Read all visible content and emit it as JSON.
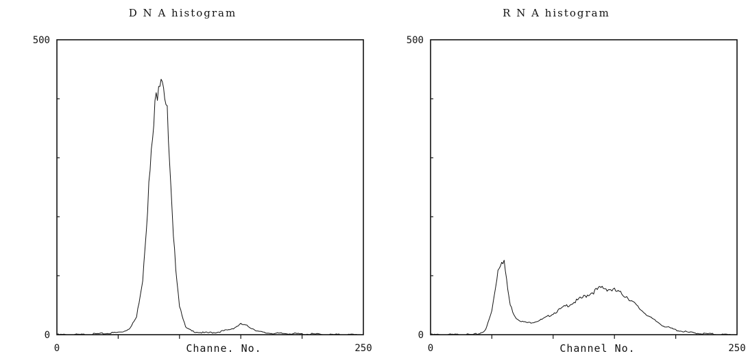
{
  "chart_data": [
    {
      "type": "line",
      "title": "D N A histogram",
      "xlabel": "Channe. No.",
      "ylabel": "",
      "xlim": [
        0,
        250
      ],
      "ylim": [
        0,
        500
      ],
      "x_ticks": [
        0,
        250
      ],
      "y_ticks": [
        0,
        500
      ],
      "x_minor_ticks": [
        50,
        100,
        150,
        200
      ],
      "y_minor_ticks": [
        100,
        200,
        300,
        400
      ],
      "grid": false,
      "series": [
        {
          "x": [
            0,
            10,
            20,
            30,
            40,
            45,
            50,
            55,
            60,
            65,
            70,
            75,
            80,
            83,
            85,
            87,
            90,
            92,
            95,
            100,
            105,
            110,
            120,
            130,
            140,
            145,
            150,
            155,
            160,
            165,
            170,
            180,
            190,
            200,
            210,
            220,
            230,
            240,
            250
          ],
          "y": [
            0,
            0,
            0,
            1,
            2,
            3,
            4,
            6,
            12,
            30,
            95,
            250,
            380,
            440,
            450,
            435,
            370,
            280,
            160,
            50,
            12,
            6,
            3,
            4,
            8,
            12,
            18,
            15,
            10,
            5,
            3,
            2,
            2,
            1,
            1,
            0,
            0,
            0,
            0
          ]
        }
      ]
    },
    {
      "type": "line",
      "title": "R N A histogram",
      "xlabel": "Channel No.",
      "ylabel": "",
      "xlim": [
        0,
        250
      ],
      "ylim": [
        0,
        500
      ],
      "x_ticks": [
        0,
        250
      ],
      "y_ticks": [
        0,
        500
      ],
      "x_minor_ticks": [
        50,
        100,
        150,
        200
      ],
      "y_minor_ticks": [
        100,
        200,
        300,
        400
      ],
      "grid": false,
      "series": [
        {
          "x": [
            0,
            10,
            20,
            30,
            35,
            40,
            45,
            50,
            55,
            58,
            60,
            62,
            65,
            68,
            70,
            75,
            80,
            85,
            90,
            95,
            100,
            105,
            110,
            120,
            130,
            140,
            150,
            160,
            170,
            180,
            190,
            200,
            210,
            220,
            230,
            240,
            250
          ],
          "y": [
            0,
            0,
            0,
            0,
            0,
            2,
            8,
            40,
            110,
            128,
            125,
            90,
            50,
            35,
            28,
            22,
            20,
            22,
            25,
            30,
            36,
            42,
            48,
            58,
            70,
            80,
            75,
            65,
            45,
            28,
            15,
            8,
            4,
            2,
            1,
            0,
            0
          ]
        }
      ]
    }
  ]
}
